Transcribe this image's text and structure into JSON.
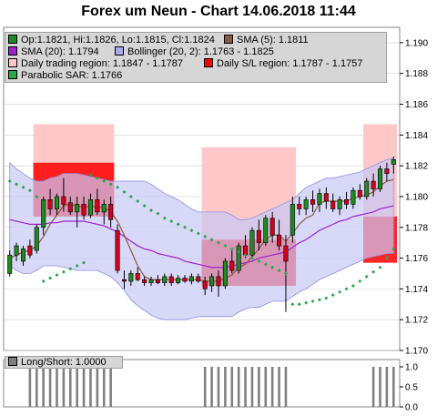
{
  "title": "Forex um Neun - Chart 14.06.2018 11:44",
  "colors": {
    "bullish": "#1f8a1f",
    "bearish": "#d4001c",
    "sma5": "#8b5a3c",
    "sma20": "#a020d0",
    "bollinger_fill": "#c8c8f5",
    "bollinger_line": "#8f8fe6",
    "trading_region": "#ffc8c8",
    "sl_region": "#ff0000",
    "sar": "#2aa84a",
    "longshort": "#808080"
  },
  "legend": {
    "items": [
      {
        "label": "Op:1.1821, Hi:1.1826, Lo:1.1815, Cl:1.1824",
        "swatch": "#1f8a1f"
      },
      {
        "label": "SMA (5): 1.1811",
        "swatch": "#8b5a3c"
      },
      {
        "label": "SMA (20): 1.1794",
        "swatch": "#a020d0"
      },
      {
        "label": "Bollinger (20, 2): 1.1763 - 1.1825",
        "swatch": "#a8a8ee"
      },
      {
        "label": "Daily trading region: 1.1847 - 1.1787",
        "swatch": "#ffc8c8"
      },
      {
        "label": "Daily S/L region: 1.1787 - 1.1757",
        "swatch": "#ff0000"
      },
      {
        "label": "Parabolic SAR: 1.1766",
        "swatch": "#2aa84a"
      }
    ]
  },
  "sub_legend": {
    "label": "Long/Short: 1.0000",
    "swatch": "#808080"
  },
  "chart_data": {
    "type": "candlestick",
    "title": "Forex um Neun - Chart 14.06.2018 11:44",
    "ylim": [
      1.17,
      1.191
    ],
    "y_ticks": [
      "1.170",
      "1.172",
      "1.174",
      "1.176",
      "1.178",
      "1.180",
      "1.182",
      "1.184",
      "1.186",
      "1.188",
      "1.190"
    ],
    "candles": [
      {
        "o": 1.175,
        "h": 1.1765,
        "l": 1.1748,
        "c": 1.1762
      },
      {
        "o": 1.1762,
        "h": 1.177,
        "l": 1.1758,
        "c": 1.1768
      },
      {
        "o": 1.1758,
        "h": 1.1768,
        "l": 1.1755,
        "c": 1.1766
      },
      {
        "o": 1.1768,
        "h": 1.1772,
        "l": 1.176,
        "c": 1.1762
      },
      {
        "o": 1.1765,
        "h": 1.1782,
        "l": 1.1763,
        "c": 1.178
      },
      {
        "o": 1.178,
        "h": 1.18,
        "l": 1.1775,
        "c": 1.1798
      },
      {
        "o": 1.1798,
        "h": 1.1805,
        "l": 1.1788,
        "c": 1.1792
      },
      {
        "o": 1.1792,
        "h": 1.1802,
        "l": 1.1788,
        "c": 1.18
      },
      {
        "o": 1.18,
        "h": 1.1812,
        "l": 1.179,
        "c": 1.1795
      },
      {
        "o": 1.1796,
        "h": 1.18,
        "l": 1.1788,
        "c": 1.179
      },
      {
        "o": 1.179,
        "h": 1.18,
        "l": 1.178,
        "c": 1.1795
      },
      {
        "o": 1.1795,
        "h": 1.18,
        "l": 1.1785,
        "c": 1.1788
      },
      {
        "o": 1.1788,
        "h": 1.1802,
        "l": 1.1786,
        "c": 1.1798
      },
      {
        "o": 1.1798,
        "h": 1.1805,
        "l": 1.1788,
        "c": 1.179
      },
      {
        "o": 1.179,
        "h": 1.1798,
        "l": 1.1782,
        "c": 1.1795
      },
      {
        "o": 1.1795,
        "h": 1.18,
        "l": 1.178,
        "c": 1.1785
      },
      {
        "o": 1.1778,
        "h": 1.1782,
        "l": 1.175,
        "c": 1.1752
      },
      {
        "o": 1.1746,
        "h": 1.1752,
        "l": 1.174,
        "c": 1.1745
      },
      {
        "o": 1.1745,
        "h": 1.1752,
        "l": 1.1742,
        "c": 1.175
      },
      {
        "o": 1.175,
        "h": 1.1754,
        "l": 1.1745,
        "c": 1.1746
      },
      {
        "o": 1.1746,
        "h": 1.1748,
        "l": 1.1742,
        "c": 1.1744
      },
      {
        "o": 1.1744,
        "h": 1.1748,
        "l": 1.1742,
        "c": 1.1746
      },
      {
        "o": 1.1746,
        "h": 1.1749,
        "l": 1.1743,
        "c": 1.1744
      },
      {
        "o": 1.1744,
        "h": 1.175,
        "l": 1.1742,
        "c": 1.1748
      },
      {
        "o": 1.1748,
        "h": 1.175,
        "l": 1.1742,
        "c": 1.1744
      },
      {
        "o": 1.1744,
        "h": 1.1749,
        "l": 1.1743,
        "c": 1.1747
      },
      {
        "o": 1.1747,
        "h": 1.1749,
        "l": 1.1744,
        "c": 1.1745
      },
      {
        "o": 1.1745,
        "h": 1.175,
        "l": 1.1743,
        "c": 1.1748
      },
      {
        "o": 1.1748,
        "h": 1.175,
        "l": 1.1744,
        "c": 1.1745
      },
      {
        "o": 1.1745,
        "h": 1.1748,
        "l": 1.1736,
        "c": 1.174
      },
      {
        "o": 1.1742,
        "h": 1.175,
        "l": 1.1738,
        "c": 1.1748
      },
      {
        "o": 1.1748,
        "h": 1.1752,
        "l": 1.1735,
        "c": 1.1742
      },
      {
        "o": 1.1742,
        "h": 1.176,
        "l": 1.174,
        "c": 1.1758
      },
      {
        "o": 1.1758,
        "h": 1.1765,
        "l": 1.175,
        "c": 1.1752
      },
      {
        "o": 1.1752,
        "h": 1.177,
        "l": 1.175,
        "c": 1.1768
      },
      {
        "o": 1.1768,
        "h": 1.1775,
        "l": 1.176,
        "c": 1.1762
      },
      {
        "o": 1.1762,
        "h": 1.178,
        "l": 1.176,
        "c": 1.1778
      },
      {
        "o": 1.1778,
        "h": 1.1785,
        "l": 1.1765,
        "c": 1.177
      },
      {
        "o": 1.177,
        "h": 1.1788,
        "l": 1.1768,
        "c": 1.1786
      },
      {
        "o": 1.1786,
        "h": 1.179,
        "l": 1.177,
        "c": 1.1775
      },
      {
        "o": 1.1775,
        "h": 1.1785,
        "l": 1.1765,
        "c": 1.1768
      },
      {
        "o": 1.1768,
        "h": 1.1775,
        "l": 1.1725,
        "c": 1.1758
      },
      {
        "o": 1.1775,
        "h": 1.18,
        "l": 1.177,
        "c": 1.1795
      },
      {
        "o": 1.1795,
        "h": 1.18,
        "l": 1.1788,
        "c": 1.1792
      },
      {
        "o": 1.1792,
        "h": 1.18,
        "l": 1.1788,
        "c": 1.1798
      },
      {
        "o": 1.1798,
        "h": 1.1804,
        "l": 1.179,
        "c": 1.1795
      },
      {
        "o": 1.1795,
        "h": 1.1805,
        "l": 1.179,
        "c": 1.1802
      },
      {
        "o": 1.1802,
        "h": 1.1806,
        "l": 1.1792,
        "c": 1.1797
      },
      {
        "o": 1.1797,
        "h": 1.1802,
        "l": 1.179,
        "c": 1.1792
      },
      {
        "o": 1.1792,
        "h": 1.18,
        "l": 1.1788,
        "c": 1.1798
      },
      {
        "o": 1.1798,
        "h": 1.1803,
        "l": 1.1792,
        "c": 1.1795
      },
      {
        "o": 1.1795,
        "h": 1.1806,
        "l": 1.1792,
        "c": 1.1804
      },
      {
        "o": 1.1804,
        "h": 1.1808,
        "l": 1.1798,
        "c": 1.18
      },
      {
        "o": 1.18,
        "h": 1.1812,
        "l": 1.1798,
        "c": 1.181
      },
      {
        "o": 1.181,
        "h": 1.1815,
        "l": 1.18,
        "c": 1.1805
      },
      {
        "o": 1.1805,
        "h": 1.182,
        "l": 1.1803,
        "c": 1.1818
      },
      {
        "o": 1.1818,
        "h": 1.1822,
        "l": 1.181,
        "c": 1.1815
      },
      {
        "o": 1.1821,
        "h": 1.1826,
        "l": 1.1815,
        "c": 1.1824
      }
    ],
    "sma5": [
      1.176,
      1.1762,
      1.1764,
      1.1765,
      1.1768,
      1.1774,
      1.1782,
      1.1788,
      1.1794,
      1.1795,
      1.1794,
      1.1793,
      1.1794,
      1.1793,
      1.1793,
      1.179,
      1.1784,
      1.1775,
      1.1765,
      1.1755,
      1.1748,
      1.1746,
      1.1746,
      1.1746,
      1.1746,
      1.1746,
      1.1746,
      1.1746,
      1.1746,
      1.1745,
      1.1745,
      1.1745,
      1.1747,
      1.1749,
      1.1754,
      1.1756,
      1.1761,
      1.1766,
      1.1772,
      1.1775,
      1.1775,
      1.1771,
      1.1776,
      1.1782,
      1.1786,
      1.1788,
      1.1796,
      1.1797,
      1.1797,
      1.1797,
      1.1797,
      1.1799,
      1.18,
      1.1801,
      1.1803,
      1.1807,
      1.181,
      1.1811
    ],
    "sma20": [
      1.1785,
      1.1784,
      1.1783,
      1.1782,
      1.1782,
      1.1782,
      1.1783,
      1.1783,
      1.1784,
      1.1784,
      1.1784,
      1.1784,
      1.1783,
      1.1782,
      1.1781,
      1.1779,
      1.1777,
      1.1774,
      1.1771,
      1.1768,
      1.1766,
      1.1765,
      1.1763,
      1.1762,
      1.1761,
      1.176,
      1.1758,
      1.1757,
      1.1756,
      1.1755,
      1.1754,
      1.1754,
      1.1754,
      1.1755,
      1.1756,
      1.1757,
      1.1758,
      1.176,
      1.1761,
      1.1762,
      1.1763,
      1.1764,
      1.1767,
      1.177,
      1.1772,
      1.1775,
      1.1778,
      1.178,
      1.1782,
      1.1784,
      1.1785,
      1.1787,
      1.1788,
      1.1789,
      1.179,
      1.1792,
      1.1793,
      1.1794
    ],
    "boll_upper": [
      1.1822,
      1.1818,
      1.1815,
      1.1812,
      1.181,
      1.181,
      1.1812,
      1.1813,
      1.1815,
      1.1815,
      1.1815,
      1.1814,
      1.1813,
      1.1812,
      1.1811,
      1.181,
      1.181,
      1.181,
      1.181,
      1.181,
      1.181,
      1.1808,
      1.1805,
      1.1802,
      1.18,
      1.1798,
      1.1795,
      1.1792,
      1.179,
      1.179,
      1.179,
      1.179,
      1.179,
      1.1788,
      1.1785,
      1.1785,
      1.1786,
      1.1788,
      1.179,
      1.1792,
      1.1794,
      1.1796,
      1.1798,
      1.1802,
      1.1806,
      1.1808,
      1.181,
      1.1812,
      1.1812,
      1.1813,
      1.1814,
      1.1815,
      1.1816,
      1.1818,
      1.182,
      1.1822,
      1.1824,
      1.1825
    ],
    "boll_lower": [
      1.1755,
      1.1752,
      1.175,
      1.175,
      1.1752,
      1.1755,
      1.1755,
      1.1755,
      1.1754,
      1.1753,
      1.1752,
      1.1752,
      1.1752,
      1.1752,
      1.175,
      1.1748,
      1.1744,
      1.1739,
      1.1733,
      1.1729,
      1.1726,
      1.1723,
      1.1721,
      1.172,
      1.172,
      1.172,
      1.172,
      1.1721,
      1.1722,
      1.1722,
      1.1722,
      1.1722,
      1.1722,
      1.1722,
      1.1725,
      1.1727,
      1.1728,
      1.1728,
      1.173,
      1.1732,
      1.1732,
      1.1732,
      1.1735,
      1.1738,
      1.174,
      1.1743,
      1.1746,
      1.1748,
      1.175,
      1.1752,
      1.1754,
      1.1756,
      1.1758,
      1.176,
      1.1761,
      1.1762,
      1.1763,
      1.1763
    ],
    "sar": [
      1.181,
      1.1808,
      1.1806,
      1.1804,
      1.18,
      null,
      null,
      null,
      null,
      null,
      null,
      null,
      1.1814,
      1.1812,
      1.181,
      1.1808,
      1.1806,
      1.1803,
      1.18,
      1.1797,
      1.1794,
      1.1791,
      1.1789,
      1.1786,
      1.1784,
      1.1782,
      1.178,
      1.1778,
      1.1776,
      1.1774,
      1.1772,
      1.177,
      1.1768,
      1.1766,
      1.1764,
      1.1762,
      1.176,
      1.1758,
      1.1756,
      1.1754,
      1.1752,
      1.175,
      1.173,
      1.173,
      1.1731,
      1.1732,
      1.1733,
      1.1734,
      1.1736,
      1.1738,
      1.174,
      1.1742,
      1.1745,
      1.1748,
      1.1751,
      1.1754,
      1.176,
      1.1766
    ],
    "sar_early": [
      1.1745,
      1.1747,
      1.1749,
      1.1751,
      1.1753,
      1.1755,
      1.1757
    ],
    "regions": [
      {
        "from": 4,
        "to": 15,
        "trading": [
          1.1847,
          1.1787
        ],
        "sl": [
          1.1822,
          1.1787
        ]
      },
      {
        "from": 29,
        "to": 42,
        "trading": [
          1.1832,
          1.1772
        ],
        "sl": [
          1.1772,
          1.1742
        ]
      },
      {
        "from": 53,
        "to": 57,
        "trading": [
          1.1847,
          1.1787
        ],
        "sl": [
          1.1787,
          1.1757
        ]
      }
    ],
    "longshort": {
      "ylim": [
        0.0,
        1.0
      ],
      "y_ticks": [
        "0.0",
        "0.5",
        "1.0"
      ],
      "values": [
        0,
        0,
        0,
        1,
        1,
        1,
        1,
        1,
        1,
        1,
        1,
        1,
        1,
        1,
        1,
        1,
        0,
        0,
        0,
        0,
        0,
        0,
        0,
        0,
        0,
        0,
        0,
        0,
        0,
        1,
        1,
        1,
        1,
        1,
        1,
        1,
        1,
        1,
        1,
        1,
        1,
        1,
        0,
        0,
        0,
        0,
        0,
        0,
        0,
        0,
        0,
        0,
        0,
        0,
        1,
        1,
        1,
        1
      ]
    }
  }
}
